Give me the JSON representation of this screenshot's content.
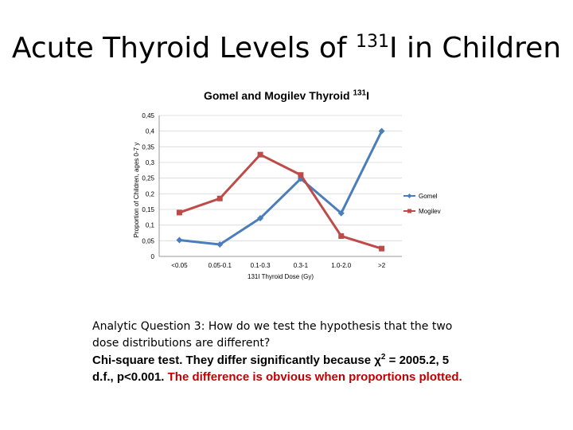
{
  "slide": {
    "title_main": "Acute Thyroid Levels of ",
    "title_sup": "131",
    "title_tail": "I in Children",
    "question": "Analytic Question 3:  How do we test the hypothesis that the two dose distributions are different?",
    "answer_part1": "Chi-square test.   They differ significantly because χ",
    "answer_sup": "2",
    "answer_part2": " = 2005.2, 5 d.f., p<0.001.",
    "answer_red": "The difference is obvious when proportions plotted."
  },
  "chart_data": {
    "type": "line",
    "title_main": "Gomel and Mogilev Thyroid ",
    "title_sup": "131",
    "title_tail": "I",
    "xlabel": "131I Thyroid Dose (Gy)",
    "ylabel": "Proportion of Children, ages 0-7 y",
    "categories": [
      "<0.05",
      "0.05-0.1",
      "0.1-0.3",
      "0.3-1",
      "1.0-2.0",
      ">2"
    ],
    "yticks": [
      "0",
      "0,05",
      "0,1",
      "0,15",
      "0,2",
      "0,25",
      "0,3",
      "0,35",
      "0,4",
      "0,45"
    ],
    "ylim": [
      0,
      0.45
    ],
    "legend_position": "right",
    "grid": true,
    "series": [
      {
        "name": "Gomel",
        "color": "#4a7ebb",
        "marker": "diamond",
        "values": [
          0.052,
          0.038,
          0.122,
          0.248,
          0.138,
          0.4
        ]
      },
      {
        "name": "Mogilev",
        "color": "#be4b48",
        "marker": "square",
        "values": [
          0.14,
          0.185,
          0.325,
          0.26,
          0.065,
          0.025
        ]
      }
    ]
  }
}
